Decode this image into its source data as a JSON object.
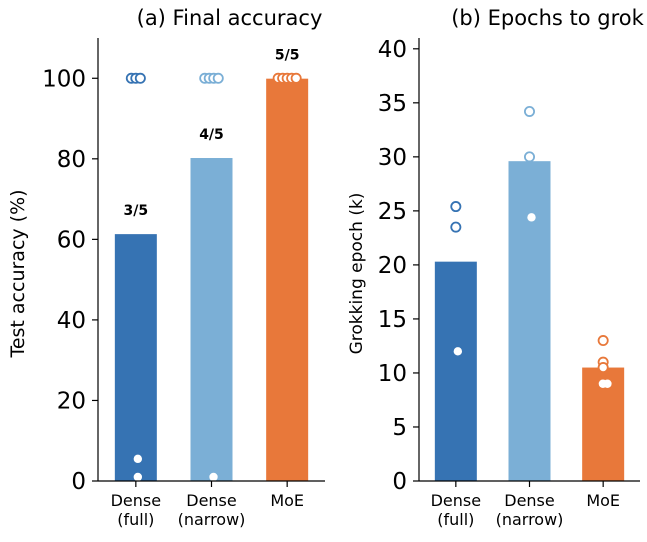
{
  "chart_data": [
    {
      "type": "bar",
      "title": "(a) Final accuracy",
      "xlabel": "",
      "ylabel": "Test accuracy (%)",
      "ylim": [
        0,
        110
      ],
      "yticks": [
        0,
        20,
        40,
        60,
        80,
        100
      ],
      "categories": [
        "Dense\n(full)",
        "Dense\n(narrow)",
        "MoE"
      ],
      "values": [
        61.3,
        80.2,
        99.9
      ],
      "bar_labels": [
        "3/5",
        "4/5",
        "5/5"
      ],
      "colors": [
        "#3673b3",
        "#7bafd6",
        "#e8783a"
      ],
      "points": [
        {
          "category": 0,
          "y": 100,
          "style": "open"
        },
        {
          "category": 0,
          "y": 100,
          "style": "open"
        },
        {
          "category": 0,
          "y": 100,
          "style": "open"
        },
        {
          "category": 0,
          "y": 5.5,
          "style": "filled"
        },
        {
          "category": 0,
          "y": 1.0,
          "style": "filled"
        },
        {
          "category": 1,
          "y": 100,
          "style": "open"
        },
        {
          "category": 1,
          "y": 100,
          "style": "open"
        },
        {
          "category": 1,
          "y": 100,
          "style": "open"
        },
        {
          "category": 1,
          "y": 100,
          "style": "open"
        },
        {
          "category": 1,
          "y": 1.0,
          "style": "filled"
        },
        {
          "category": 2,
          "y": 100,
          "style": "open"
        },
        {
          "category": 2,
          "y": 100,
          "style": "open"
        },
        {
          "category": 2,
          "y": 100,
          "style": "open"
        },
        {
          "category": 2,
          "y": 100,
          "style": "open"
        },
        {
          "category": 2,
          "y": 100,
          "style": "open"
        }
      ],
      "grid": false
    },
    {
      "type": "bar",
      "title": "(b) Epochs to grok",
      "xlabel": "",
      "ylabel": "Grokking epoch (k)",
      "ylim": [
        0,
        41
      ],
      "yticks": [
        0,
        5,
        10,
        15,
        20,
        25,
        30,
        35,
        40
      ],
      "categories": [
        "Dense\n(full)",
        "Dense\n(narrow)",
        "MoE"
      ],
      "values": [
        20.3,
        29.6,
        10.5
      ],
      "colors": [
        "#3673b3",
        "#7bafd6",
        "#e8783a"
      ],
      "points": [
        {
          "category": 0,
          "y": 25.4,
          "style": "open"
        },
        {
          "category": 0,
          "y": 23.5,
          "style": "open"
        },
        {
          "category": 0,
          "y": 12.0,
          "style": "filled"
        },
        {
          "category": 1,
          "y": 34.2,
          "style": "open"
        },
        {
          "category": 1,
          "y": 30.0,
          "style": "open"
        },
        {
          "category": 1,
          "y": 24.4,
          "style": "filled"
        },
        {
          "category": 2,
          "y": 13.0,
          "style": "open"
        },
        {
          "category": 2,
          "y": 11.0,
          "style": "open"
        },
        {
          "category": 2,
          "y": 10.5,
          "style": "open"
        },
        {
          "category": 2,
          "y": 9.0,
          "style": "filled"
        },
        {
          "category": 2,
          "y": 9.0,
          "style": "filled"
        }
      ],
      "grid": false
    }
  ]
}
